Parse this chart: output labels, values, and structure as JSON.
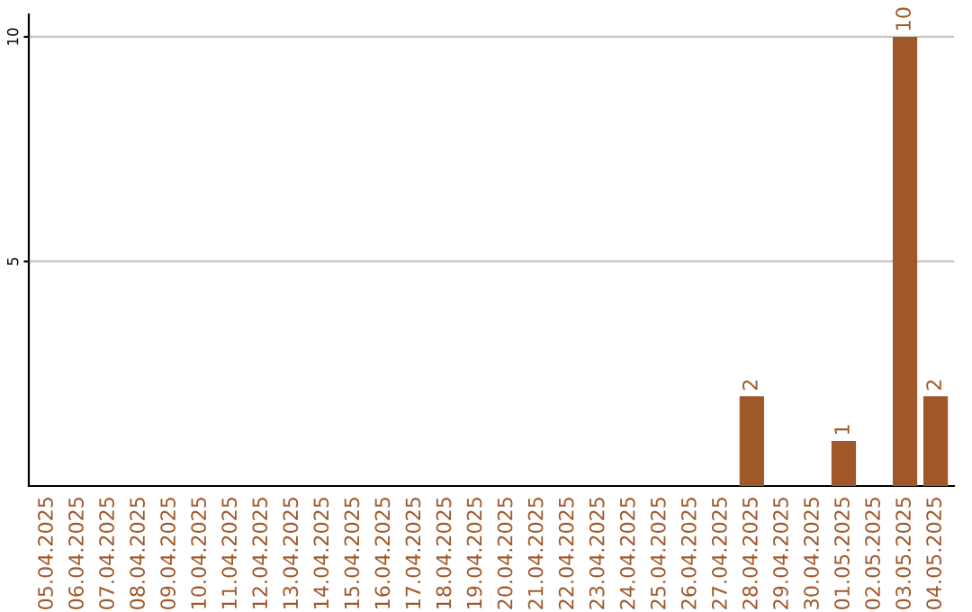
{
  "chart_data": {
    "type": "bar",
    "categories": [
      "05.04.2025",
      "06.04.2025",
      "07.04.2025",
      "08.04.2025",
      "09.04.2025",
      "10.04.2025",
      "11.04.2025",
      "12.04.2025",
      "13.04.2025",
      "14.04.2025",
      "15.04.2025",
      "16.04.2025",
      "17.04.2025",
      "18.04.2025",
      "19.04.2025",
      "20.04.2025",
      "21.04.2025",
      "22.04.2025",
      "23.04.2025",
      "24.04.2025",
      "25.04.2025",
      "26.04.2025",
      "27.04.2025",
      "28.04.2025",
      "29.04.2025",
      "30.04.2025",
      "01.05.2025",
      "02.05.2025",
      "03.05.2025",
      "04.05.2025"
    ],
    "values": [
      0,
      0,
      0,
      0,
      0,
      0,
      0,
      0,
      0,
      0,
      0,
      0,
      0,
      0,
      0,
      0,
      0,
      0,
      0,
      0,
      0,
      0,
      0,
      2,
      0,
      0,
      1,
      0,
      10,
      2
    ],
    "value_labels": [
      null,
      null,
      null,
      null,
      null,
      null,
      null,
      null,
      null,
      null,
      null,
      null,
      null,
      null,
      null,
      null,
      null,
      null,
      null,
      null,
      null,
      null,
      null,
      "2",
      null,
      null,
      "1",
      null,
      "10",
      "2"
    ],
    "color": "#a0582a",
    "ylim": [
      0,
      10.5
    ],
    "yticks": [
      5,
      10
    ],
    "grid": "y"
  }
}
